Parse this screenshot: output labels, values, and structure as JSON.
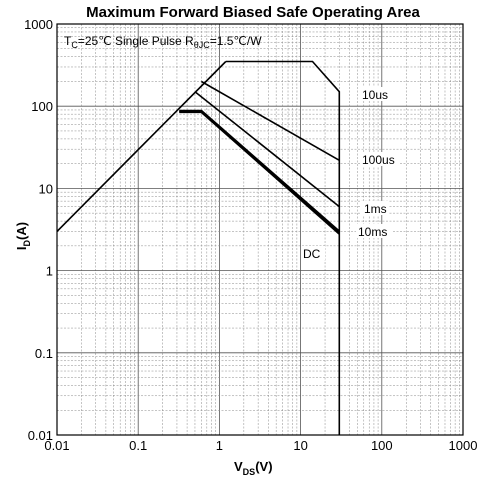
{
  "chart_data": {
    "type": "line",
    "title": "Maximum Forward Biased Safe Operating Area",
    "subtitle": {
      "prefix": "T",
      "prefix_sub": "C",
      "mid": "=25℃  Single Pulse R",
      "mid_sub": "θJC",
      "suffix": "=1.5℃/W"
    },
    "xlabel": {
      "main": "V",
      "sub": "DS",
      "unit": "(V)"
    },
    "ylabel": {
      "main": "I",
      "sub": "D",
      "unit": "(A)"
    },
    "x_scale": "log",
    "y_scale": "log",
    "xlim": [
      0.01,
      1000
    ],
    "ylim": [
      0.01,
      1000
    ],
    "x_ticks": [
      "0.01",
      "0.1",
      "1",
      "10",
      "100",
      "1000"
    ],
    "y_ticks": [
      "1000",
      "100",
      "10",
      "1",
      "0.1",
      "0.01"
    ],
    "grid": true,
    "series": [
      {
        "name": "rds_limit",
        "x": [
          0.01,
          1.2
        ],
        "y": [
          3,
          350
        ]
      },
      {
        "name": "10us",
        "x": [
          1.2,
          14,
          30,
          30
        ],
        "y": [
          350,
          350,
          150,
          0.01
        ]
      },
      {
        "name": "100us",
        "x": [
          0.6,
          30
        ],
        "y": [
          200,
          22
        ]
      },
      {
        "name": "1ms",
        "x": [
          0.5,
          30
        ],
        "y": [
          150,
          6
        ]
      },
      {
        "name": "10ms",
        "x": [
          0.32,
          0.6,
          30
        ],
        "y": [
          88,
          88,
          3
        ]
      },
      {
        "name": "DC",
        "x": [
          0.32,
          0.6,
          30
        ],
        "y": [
          85,
          85,
          2.8
        ]
      }
    ],
    "annotations": [
      "10us",
      "100us",
      "1ms",
      "10ms",
      "DC"
    ]
  }
}
